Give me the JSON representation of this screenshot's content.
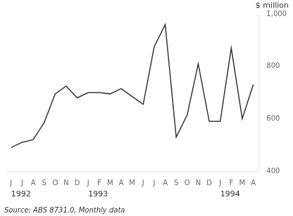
{
  "chart_data": {
    "type": "line",
    "categories": [
      "J",
      "J",
      "A",
      "S",
      "O",
      "N",
      "D",
      "J",
      "F",
      "M",
      "A",
      "M",
      "J",
      "J",
      "A",
      "S",
      "O",
      "N",
      "D",
      "J",
      "F",
      "M",
      "A"
    ],
    "values": [
      490,
      510,
      520,
      585,
      695,
      725,
      680,
      700,
      700,
      695,
      715,
      685,
      655,
      875,
      960,
      530,
      615,
      810,
      590,
      590,
      870,
      600,
      730
    ],
    "color": "#333333",
    "ylim": [
      400,
      1000
    ],
    "yticks": [
      400,
      600,
      800,
      {
        "value": 1000,
        "label": "1,000"
      }
    ],
    "ylabel": "$ million",
    "annotations": [
      {
        "text": "1992",
        "x": 0
      },
      {
        "text": "1993",
        "x": 7
      },
      {
        "text": "1994",
        "x": 19
      }
    ],
    "source": "Source: ABS 8731.0, Monthly data",
    "grid": false
  }
}
